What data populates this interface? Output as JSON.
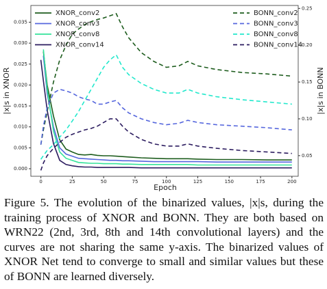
{
  "chart_data": {
    "type": "line",
    "xlabel": "Epoch",
    "ylabel": "|x|s in XNOR",
    "y2label": "|x|s in BONN",
    "x": [
      0,
      2,
      5,
      10,
      15,
      20,
      25,
      30,
      35,
      40,
      45,
      50,
      55,
      60,
      65,
      70,
      80,
      90,
      100,
      110,
      117,
      125,
      140,
      160,
      180,
      200
    ],
    "xlim": [
      -8,
      205
    ],
    "xticks": [
      0,
      25,
      50,
      75,
      100,
      125,
      150,
      175,
      200
    ],
    "ylim": [
      -0.0018,
      0.039
    ],
    "yticks": [
      {
        "value": 0,
        "label": "0.000"
      },
      {
        "value": 0.005,
        "label": "0.005"
      },
      {
        "value": 0.01,
        "label": "0.010"
      },
      {
        "value": 0.015,
        "label": "0.015"
      },
      {
        "value": 0.02,
        "label": "0.020"
      },
      {
        "value": 0.025,
        "label": "0.025"
      },
      {
        "value": 0.03,
        "label": "0.030"
      },
      {
        "value": 0.035,
        "label": "0.035"
      }
    ],
    "y2lim": [
      0.022,
      0.254
    ],
    "y2ticks": [
      0.05,
      {
        "value": 0.1,
        "label": "0.10"
      },
      0.15,
      {
        "value": 0.2,
        "label": "0.20"
      },
      0.25
    ],
    "legend": "upper left",
    "legend2": "upper right",
    "series": [
      {
        "name": "XNOR_conv2",
        "color": "#1d5c1d",
        "linestyle": "solid",
        "values": [
          null,
          0.028,
          0.02,
          0.0126,
          0.0069,
          0.0047,
          0.004,
          0.0034,
          0.0033,
          0.0034,
          0.0032,
          0.0031,
          0.0031,
          0.003,
          0.0029,
          0.0028,
          0.0026,
          0.0025,
          0.0024,
          0.0024,
          0.0024,
          0.0023,
          0.0022,
          0.0022,
          0.0021,
          0.0021
        ]
      },
      {
        "name": "XNOR_conv3",
        "color": "#5566dd",
        "linestyle": "solid",
        "values": [
          null,
          0.027,
          0.018,
          0.01,
          0.005,
          0.0035,
          0.003,
          0.0025,
          0.0024,
          0.0023,
          0.0022,
          0.0021,
          0.002,
          0.002,
          0.0019,
          0.0019,
          0.0018,
          0.0017,
          0.0017,
          0.0017,
          0.0017,
          0.0017,
          0.0016,
          0.0016,
          0.0016,
          0.0016
        ]
      },
      {
        "name": "XNOR_conv8",
        "color": "#33e39a",
        "linestyle": "solid",
        "values": [
          null,
          0.0285,
          0.019,
          0.009,
          0.004,
          0.0025,
          0.002,
          0.0015,
          0.0014,
          0.0013,
          0.0013,
          0.0012,
          0.0012,
          0.0012,
          0.0011,
          0.0011,
          0.001,
          0.001,
          0.001,
          0.001,
          0.001,
          0.0009,
          0.0009,
          0.0009,
          0.0009,
          0.0009
        ]
      },
      {
        "name": "XNOR_conv14",
        "color": "#2a1a5e",
        "linestyle": "solid",
        "values": [
          0.026,
          0.021,
          0.014,
          0.006,
          0.002,
          0.001,
          0.0007,
          0.0005,
          0.0004,
          0.0004,
          0.0003,
          0.0003,
          0.0003,
          0.0003,
          0.0003,
          0.0003,
          0.0002,
          0.0002,
          0.0002,
          0.0002,
          0.0002,
          0.0002,
          0.0002,
          0.0002,
          0.0002,
          0.0002
        ]
      },
      {
        "name": "BONN_conv2",
        "color": "#1d5c1d",
        "linestyle": "dashed",
        "axis": "y2",
        "values": [
          0.065,
          0.085,
          0.11,
          0.15,
          0.18,
          0.2,
          0.215,
          0.222,
          0.228,
          0.232,
          0.235,
          0.237,
          0.24,
          0.243,
          0.225,
          0.21,
          0.19,
          0.178,
          0.17,
          0.172,
          0.178,
          0.172,
          0.167,
          0.163,
          0.161,
          0.158
        ]
      },
      {
        "name": "BONN_conv3",
        "color": "#5566dd",
        "linestyle": "dashed",
        "axis": "y2",
        "values": [
          0.065,
          0.09,
          0.115,
          0.135,
          0.14,
          0.138,
          0.135,
          0.13,
          0.127,
          0.125,
          0.12,
          0.12,
          0.123,
          0.125,
          0.115,
          0.108,
          0.1,
          0.095,
          0.092,
          0.094,
          0.098,
          0.095,
          0.092,
          0.09,
          0.088,
          0.085
        ]
      },
      {
        "name": "BONN_conv8",
        "color": "#22e8cc",
        "linestyle": "dashed",
        "axis": "y2",
        "values": [
          0.045,
          0.05,
          0.057,
          0.065,
          0.075,
          0.085,
          0.097,
          0.11,
          0.125,
          0.14,
          0.155,
          0.17,
          0.18,
          0.187,
          0.17,
          0.16,
          0.148,
          0.14,
          0.135,
          0.135,
          0.14,
          0.135,
          0.13,
          0.126,
          0.123,
          0.12
        ]
      },
      {
        "name": "BONN_conv14",
        "color": "#2a1a5e",
        "linestyle": "dashed",
        "axis": "y2",
        "values": [
          0.03,
          0.04,
          0.05,
          0.06,
          0.068,
          0.075,
          0.079,
          0.082,
          0.085,
          0.087,
          0.09,
          0.095,
          0.1,
          0.1,
          0.09,
          0.082,
          0.072,
          0.066,
          0.063,
          0.063,
          0.066,
          0.063,
          0.06,
          0.057,
          0.055,
          0.053
        ]
      }
    ]
  },
  "caption": "Figure 5. The evolution of the binarized values, |x|s, during the training process of XNOR and BONN. They are both based on WRN22 (2nd, 3rd, 8th and 14th convolutional layers) and the curves are not sharing the same y-axis. The binarized values of XNOR Net tend to converge to small and similar values but these of BONN are learned diversely."
}
